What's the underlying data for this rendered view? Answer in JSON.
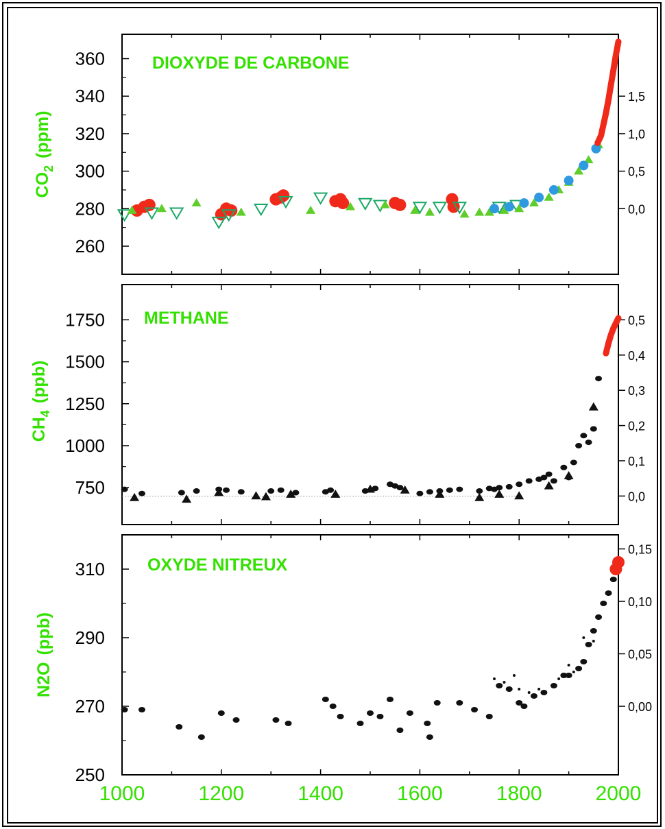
{
  "chart_data": [
    {
      "type": "scatter",
      "title": "DIOXYDE DE  CARBONE",
      "ylabel": "CO",
      "ylabel_sub": "2",
      "ylabel_unit": "(ppm)",
      "ylim": [
        245,
        373
      ],
      "yticks": [
        260,
        280,
        300,
        320,
        340,
        360
      ],
      "ytick_labels": [
        "260",
        "280",
        "300",
        "320",
        "340",
        "360"
      ],
      "y2ticks": [
        0.0,
        0.5,
        1.0,
        1.5
      ],
      "y2tick_labels": [
        "0,0",
        "0,5",
        "1,0",
        "1,5"
      ],
      "y2_zero_at": 280,
      "y2_per_unit": 40,
      "xlim": [
        1000,
        2000
      ],
      "colors": {
        "red": "#f02a1a",
        "green": "#5fce2a",
        "blue": "#2f9ae0",
        "hollow": "#1aa868"
      },
      "series": [
        {
          "marker": "circle",
          "color": "red",
          "x": [
            1030,
            1045,
            1055,
            1200,
            1210,
            1220,
            1310,
            1320,
            1325,
            1430,
            1440,
            1445,
            1550,
            1560,
            1665,
            1668
          ],
          "y": [
            279,
            281,
            282,
            277,
            280,
            279,
            285,
            286,
            287,
            284,
            285,
            283,
            283,
            282,
            285,
            281
          ]
        },
        {
          "marker": "triangle-down-hollow",
          "color": "hollow",
          "x": [
            1005,
            1060,
            1110,
            1195,
            1215,
            1280,
            1330,
            1400,
            1490,
            1520,
            1600,
            1640,
            1680,
            1760,
            1795
          ],
          "y": [
            277,
            278,
            278,
            273,
            277,
            280,
            284,
            286,
            283,
            282,
            281,
            281,
            281,
            281,
            282
          ]
        },
        {
          "marker": "triangle",
          "color": "green",
          "x": [
            1020,
            1080,
            1150,
            1240,
            1380,
            1460,
            1530,
            1590,
            1620,
            1690,
            1720,
            1740,
            1770,
            1800,
            1830,
            1860,
            1880,
            1900,
            1920,
            1940,
            1960
          ],
          "y": [
            279,
            280,
            283,
            278,
            279,
            281,
            282,
            279,
            278,
            277,
            278,
            278,
            279,
            280,
            283,
            286,
            290,
            294,
            300,
            306,
            314
          ]
        },
        {
          "marker": "circle",
          "color": "blue",
          "x": [
            1750,
            1780,
            1810,
            1840,
            1870,
            1900,
            1930,
            1955
          ],
          "y": [
            280,
            281,
            283,
            286,
            290,
            295,
            303,
            312
          ]
        },
        {
          "marker": "line",
          "color": "red",
          "x": [
            1958,
            1965,
            1970,
            1975,
            1980,
            1985,
            1990,
            1995,
            2000
          ],
          "y": [
            315,
            319,
            325,
            331,
            338,
            346,
            354,
            362,
            369
          ]
        }
      ]
    },
    {
      "type": "scatter",
      "title": "METHANE",
      "ylabel": "CH",
      "ylabel_sub": "4",
      "ylabel_unit": "(ppb)",
      "ylim": [
        530,
        1960
      ],
      "yticks": [
        750,
        1000,
        1250,
        1500,
        1750
      ],
      "ytick_labels": [
        "750",
        "1000",
        "1250",
        "1500",
        "1750"
      ],
      "y2ticks": [
        0.0,
        0.1,
        0.2,
        0.3,
        0.4,
        0.5
      ],
      "y2tick_labels": [
        "0,0",
        "0,1",
        "0,2",
        "0,3",
        "0,4",
        "0,5"
      ],
      "y2_zero_at": 700,
      "y2_per_unit": 2100,
      "xlim": [
        1000,
        2000
      ],
      "colors": {
        "black": "#111111",
        "red": "#f02a1a"
      },
      "series": [
        {
          "marker": "circle",
          "color": "black",
          "x": [
            1005,
            1040,
            1120,
            1150,
            1195,
            1210,
            1240,
            1300,
            1320,
            1350,
            1410,
            1420,
            1490,
            1510,
            1540,
            1550,
            1560,
            1600,
            1620,
            1640,
            1660,
            1680,
            1720,
            1740,
            1750,
            1760,
            1780,
            1800,
            1820,
            1840,
            1850,
            1860,
            1870,
            1890,
            1900,
            1910,
            1920,
            1930,
            1940,
            1950,
            1960
          ],
          "y": [
            740,
            715,
            720,
            730,
            740,
            735,
            725,
            730,
            735,
            720,
            725,
            735,
            730,
            745,
            770,
            760,
            750,
            715,
            725,
            730,
            735,
            740,
            730,
            745,
            740,
            750,
            755,
            770,
            790,
            800,
            810,
            830,
            790,
            870,
            810,
            900,
            1000,
            1060,
            1020,
            1100,
            1400
          ]
        },
        {
          "marker": "triangle",
          "color": "black",
          "x": [
            1025,
            1130,
            1195,
            1270,
            1290,
            1340,
            1430,
            1500,
            1570,
            1640,
            1720,
            1760,
            1800,
            1860,
            1900,
            1950
          ],
          "y": [
            690,
            680,
            720,
            700,
            695,
            710,
            710,
            740,
            735,
            710,
            690,
            710,
            700,
            760,
            820,
            1230
          ]
        },
        {
          "marker": "line",
          "color": "red",
          "x": [
            1975,
            1980,
            1985,
            1990,
            1995,
            2000
          ],
          "y": [
            1550,
            1610,
            1660,
            1700,
            1730,
            1760
          ]
        }
      ]
    },
    {
      "type": "scatter",
      "title": "OXYDE NITREUX",
      "ylabel": "N2O",
      "ylabel_unit": "(ppb)",
      "ylim": [
        250,
        320
      ],
      "yticks": [
        250,
        270,
        290,
        310
      ],
      "ytick_labels": [
        "250",
        "270",
        "290",
        "310"
      ],
      "y2ticks": [
        0.0,
        0.05,
        0.1,
        0.15
      ],
      "y2tick_labels": [
        "0,00",
        "0,05",
        "0,10",
        "0,15"
      ],
      "y2_zero_at": 270,
      "y2_per_unit": 306,
      "xlim": [
        1000,
        2000
      ],
      "colors": {
        "black": "#111111",
        "red": "#f02a1a"
      },
      "series": [
        {
          "marker": "circle",
          "color": "black",
          "x": [
            1005,
            1040,
            1115,
            1160,
            1200,
            1230,
            1310,
            1335,
            1410,
            1425,
            1440,
            1480,
            1500,
            1520,
            1540,
            1560,
            1580,
            1615,
            1620,
            1635,
            1680,
            1710,
            1740,
            1760,
            1780,
            1800,
            1810,
            1830,
            1850,
            1870,
            1890,
            1900,
            1920,
            1930,
            1940,
            1950,
            1960,
            1970,
            1980,
            1990,
            2000
          ],
          "y": [
            269,
            269,
            264,
            261,
            268,
            266,
            266,
            265,
            272,
            270,
            267,
            265,
            268,
            267,
            272,
            263,
            268,
            265,
            261,
            271,
            271,
            269,
            267,
            276,
            275,
            271,
            270,
            273,
            274,
            276,
            279,
            279,
            281,
            283,
            288,
            292,
            296,
            300,
            303,
            307,
            311
          ]
        },
        {
          "marker": "dot",
          "color": "black",
          "x": [
            1750,
            1770,
            1790,
            1800,
            1820,
            1840,
            1880,
            1900,
            1910,
            1930,
            1950
          ],
          "y": [
            278,
            277,
            279,
            275,
            274,
            275,
            278,
            282,
            280,
            290,
            289
          ]
        },
        {
          "marker": "circle",
          "color": "red",
          "x": [
            1995,
            2000
          ],
          "y": [
            310,
            312
          ]
        }
      ]
    }
  ],
  "x_axis": {
    "ticks": [
      1000,
      1200,
      1400,
      1600,
      1800,
      2000
    ],
    "tick_labels": [
      "1000",
      "1200",
      "1400",
      "1600",
      "1800",
      "2000"
    ]
  }
}
